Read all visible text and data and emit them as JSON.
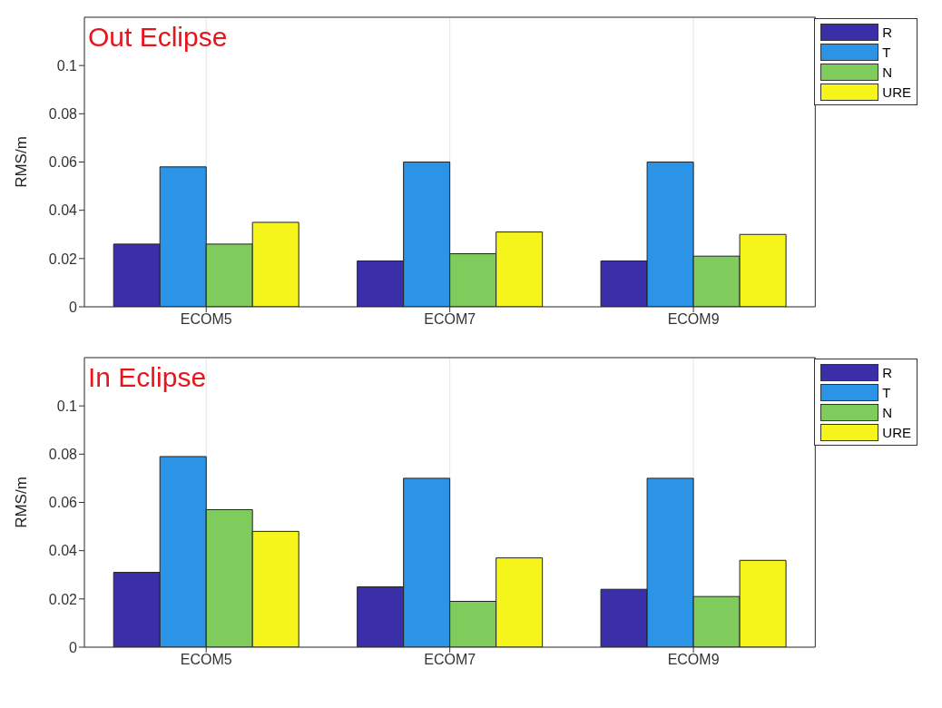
{
  "chart_data": [
    {
      "type": "bar",
      "title": "Out Eclipse",
      "ylabel": "RMS/m",
      "categories": [
        "ECOM5",
        "ECOM7",
        "ECOM9"
      ],
      "ylim": [
        0,
        0.12
      ],
      "yticks": [
        0,
        0.02,
        0.04,
        0.06,
        0.08,
        0.1
      ],
      "grid": true,
      "legend": "top right",
      "series": [
        {
          "name": "R",
          "color": "#3a2fa8",
          "values": [
            0.026,
            0.019,
            0.019
          ]
        },
        {
          "name": "T",
          "color": "#2b94e6",
          "values": [
            0.058,
            0.06,
            0.06
          ]
        },
        {
          "name": "N",
          "color": "#7fcb5c",
          "values": [
            0.026,
            0.022,
            0.021
          ]
        },
        {
          "name": "URE",
          "color": "#f5f51c",
          "values": [
            0.035,
            0.031,
            0.03
          ]
        }
      ]
    },
    {
      "type": "bar",
      "title": "In Eclipse",
      "ylabel": "RMS/m",
      "categories": [
        "ECOM5",
        "ECOM7",
        "ECOM9"
      ],
      "ylim": [
        0,
        0.12
      ],
      "yticks": [
        0,
        0.02,
        0.04,
        0.06,
        0.08,
        0.1
      ],
      "grid": true,
      "legend": "top right",
      "series": [
        {
          "name": "R",
          "color": "#3a2fa8",
          "values": [
            0.031,
            0.025,
            0.024
          ]
        },
        {
          "name": "T",
          "color": "#2b94e6",
          "values": [
            0.079,
            0.07,
            0.07
          ]
        },
        {
          "name": "N",
          "color": "#7fcb5c",
          "values": [
            0.057,
            0.019,
            0.021
          ]
        },
        {
          "name": "URE",
          "color": "#f5f51c",
          "values": [
            0.048,
            0.037,
            0.036
          ]
        }
      ]
    }
  ]
}
